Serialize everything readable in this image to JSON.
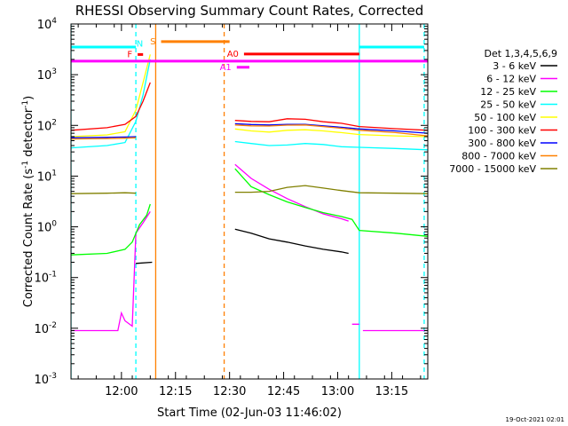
{
  "chart_data": {
    "type": "line",
    "title": "RHESSI Observing Summary Count Rates, Corrected",
    "xlabel": "Start Time (02-Jun-03 11:46:02)",
    "ylabel_main": "Corrected Count Rate (s",
    "ylabel_sup1": "-1",
    "ylabel_mid": " detector",
    "ylabel_sup2": "-1",
    "ylabel_end": ")",
    "x_unit": "minutes since 11:46:02",
    "xlim": [
      0,
      99
    ],
    "yscale": "log",
    "ylim_exp": [
      -3,
      4
    ],
    "x_ticks": [
      {
        "value": 14,
        "label": "12:00"
      },
      {
        "value": 29,
        "label": "12:15"
      },
      {
        "value": 44,
        "label": "12:30"
      },
      {
        "value": 59,
        "label": "12:45"
      },
      {
        "value": 74,
        "label": "13:00"
      },
      {
        "value": 89,
        "label": "13:15"
      }
    ],
    "y_ticks": [
      {
        "exp": -3,
        "base": "10",
        "sup": "-3"
      },
      {
        "exp": -2,
        "base": "10",
        "sup": "-2"
      },
      {
        "exp": -1,
        "base": "10",
        "sup": "-1"
      },
      {
        "exp": 0,
        "base": "10",
        "sup": "0"
      },
      {
        "exp": 1,
        "base": "10",
        "sup": "1"
      },
      {
        "exp": 2,
        "base": "10",
        "sup": "2"
      },
      {
        "exp": 3,
        "base": "10",
        "sup": "3"
      },
      {
        "exp": 4,
        "base": "10",
        "sup": "4"
      }
    ],
    "legend_title": "Det 1,3,4,5,6,9",
    "legend_position": "right",
    "series": [
      {
        "name": "3 - 6 keV",
        "color": "#000000",
        "points": [
          [
            18,
            0.19
          ],
          [
            22.5,
            0.2
          ],
          [
            23,
            null
          ],
          [
            45.5,
            0.9
          ],
          [
            50,
            0.75
          ],
          [
            55,
            0.58
          ],
          [
            60,
            0.5
          ],
          [
            65,
            0.42
          ],
          [
            70,
            0.36
          ],
          [
            75,
            0.32
          ],
          [
            77,
            0.3
          ]
        ]
      },
      {
        "name": "6 - 12 keV",
        "color": "#ff00ff",
        "points": [
          [
            0,
            0.009
          ],
          [
            13,
            0.009
          ],
          [
            14,
            0.02
          ],
          [
            15,
            0.014
          ],
          [
            17,
            0.011
          ],
          [
            18,
            0.75
          ],
          [
            20,
            1.2
          ],
          [
            22,
            2.0
          ],
          [
            23,
            null
          ],
          [
            45.5,
            17
          ],
          [
            50,
            9
          ],
          [
            55,
            5.5
          ],
          [
            60,
            3.6
          ],
          [
            65,
            2.5
          ],
          [
            70,
            1.8
          ],
          [
            75,
            1.45
          ],
          [
            77,
            1.3
          ],
          [
            78,
            null
          ],
          [
            78,
            0.012
          ],
          [
            80,
            0.012
          ],
          [
            81,
            null
          ],
          [
            81,
            0.009
          ],
          [
            99,
            0.009
          ]
        ]
      },
      {
        "name": "12 - 25 keV",
        "color": "#00ff00",
        "points": [
          [
            0,
            0.28
          ],
          [
            10,
            0.3
          ],
          [
            15,
            0.36
          ],
          [
            17,
            0.5
          ],
          [
            19,
            1.1
          ],
          [
            21,
            1.7
          ],
          [
            22,
            2.8
          ],
          [
            23,
            null
          ],
          [
            45.5,
            14
          ],
          [
            50,
            6.2
          ],
          [
            55,
            4.3
          ],
          [
            60,
            3.1
          ],
          [
            65,
            2.4
          ],
          [
            70,
            1.9
          ],
          [
            75,
            1.6
          ],
          [
            78,
            1.4
          ],
          [
            80,
            0.85
          ],
          [
            90,
            0.75
          ],
          [
            99,
            0.65
          ]
        ]
      },
      {
        "name": "25 - 50 keV",
        "color": "#00ffff",
        "points": [
          [
            0,
            36
          ],
          [
            10,
            40
          ],
          [
            15,
            46
          ],
          [
            18,
            120
          ],
          [
            20,
            400
          ],
          [
            22,
            2000
          ],
          [
            23,
            null
          ],
          [
            45.5,
            48
          ],
          [
            50,
            44
          ],
          [
            55,
            40
          ],
          [
            60,
            41
          ],
          [
            65,
            44
          ],
          [
            70,
            42
          ],
          [
            75,
            38
          ],
          [
            80,
            37
          ],
          [
            90,
            35
          ],
          [
            99,
            33
          ]
        ]
      },
      {
        "name": "50 - 100 keV",
        "color": "#ffff00",
        "points": [
          [
            0,
            60
          ],
          [
            10,
            65
          ],
          [
            15,
            75
          ],
          [
            18,
            200
          ],
          [
            20,
            700
          ],
          [
            22,
            2500
          ],
          [
            23,
            null
          ],
          [
            45.5,
            85
          ],
          [
            50,
            78
          ],
          [
            55,
            74
          ],
          [
            60,
            80
          ],
          [
            65,
            82
          ],
          [
            70,
            78
          ],
          [
            75,
            72
          ],
          [
            80,
            66
          ],
          [
            90,
            62
          ],
          [
            99,
            60
          ]
        ]
      },
      {
        "name": "100 - 300 keV",
        "color": "#ff0000",
        "points": [
          [
            0,
            80
          ],
          [
            10,
            90
          ],
          [
            15,
            105
          ],
          [
            18,
            150
          ],
          [
            20,
            300
          ],
          [
            22,
            700
          ],
          [
            23,
            null
          ],
          [
            45.5,
            125
          ],
          [
            50,
            120
          ],
          [
            55,
            118
          ],
          [
            60,
            135
          ],
          [
            65,
            132
          ],
          [
            70,
            118
          ],
          [
            75,
            110
          ],
          [
            80,
            95
          ],
          [
            90,
            86
          ],
          [
            99,
            80
          ]
        ]
      },
      {
        "name": "300 - 800 keV",
        "color": "#0000ff",
        "points": [
          [
            0,
            57
          ],
          [
            10,
            58
          ],
          [
            15,
            59
          ],
          [
            18,
            60
          ],
          [
            23,
            null
          ],
          [
            45.5,
            108
          ],
          [
            50,
            104
          ],
          [
            55,
            102
          ],
          [
            60,
            105
          ],
          [
            65,
            105
          ],
          [
            70,
            98
          ],
          [
            75,
            92
          ],
          [
            80,
            85
          ],
          [
            90,
            78
          ],
          [
            99,
            70
          ]
        ]
      },
      {
        "name": "800 - 7000 keV",
        "color": "#ff8000",
        "points": [
          [
            0,
            54
          ],
          [
            10,
            55
          ],
          [
            15,
            56
          ],
          [
            18,
            57
          ],
          [
            23,
            null
          ],
          [
            45.5,
            102
          ],
          [
            50,
            98
          ],
          [
            55,
            97
          ],
          [
            60,
            101
          ],
          [
            65,
            102
          ],
          [
            70,
            95
          ],
          [
            75,
            88
          ],
          [
            80,
            80
          ],
          [
            90,
            72
          ],
          [
            99,
            62
          ]
        ]
      },
      {
        "name": "7000 - 15000 keV",
        "color": "#808000",
        "points": [
          [
            0,
            4.5
          ],
          [
            10,
            4.6
          ],
          [
            15,
            4.7
          ],
          [
            18,
            4.6
          ],
          [
            23,
            null
          ],
          [
            45.5,
            4.8
          ],
          [
            50,
            4.8
          ],
          [
            55,
            5.0
          ],
          [
            60,
            6.0
          ],
          [
            65,
            6.5
          ],
          [
            70,
            5.8
          ],
          [
            75,
            5.2
          ],
          [
            80,
            4.7
          ],
          [
            90,
            4.6
          ],
          [
            99,
            4.5
          ]
        ]
      }
    ],
    "vlines": [
      {
        "x": 0,
        "color": "#00ffff",
        "style": "solid"
      },
      {
        "x": 18,
        "color": "#00ffff",
        "style": "dashed"
      },
      {
        "x": 23.5,
        "color": "#ff8000",
        "style": "solid"
      },
      {
        "x": 42.5,
        "color": "#ff8000",
        "style": "dashed"
      },
      {
        "x": 80,
        "color": "#00ffff",
        "style": "solid"
      },
      {
        "x": 98,
        "color": "#00ffff",
        "style": "dashed"
      }
    ],
    "flag_bars": [
      {
        "x1": 0,
        "x2": 18,
        "value": 3500,
        "color": "#00ffff",
        "label": ""
      },
      {
        "x1": 80,
        "x2": 98,
        "value": 3500,
        "color": "#00ffff",
        "label": ""
      },
      {
        "x1": 25,
        "x2": 44,
        "value": 4500,
        "color": "#ff8000",
        "label": "S"
      },
      {
        "x1": 48,
        "x2": 80,
        "value": 2550,
        "color": "#ff0000",
        "label": "A0"
      },
      {
        "x1": 0,
        "x2": 99,
        "value": 1850,
        "color": "#ff00ff",
        "label": ""
      },
      {
        "x1": 46,
        "x2": 49.5,
        "value": 1400,
        "color": "#ff00ff",
        "label": "A1"
      },
      {
        "x1": 18.5,
        "x2": 20,
        "value": 2500,
        "color": "#ff0000",
        "label": "F"
      }
    ],
    "annotations": [
      {
        "text": "N",
        "x": 20,
        "value": 3600,
        "color": "#00ffff"
      }
    ]
  },
  "footer_timestamp": "19-Oct-2021 02:01"
}
